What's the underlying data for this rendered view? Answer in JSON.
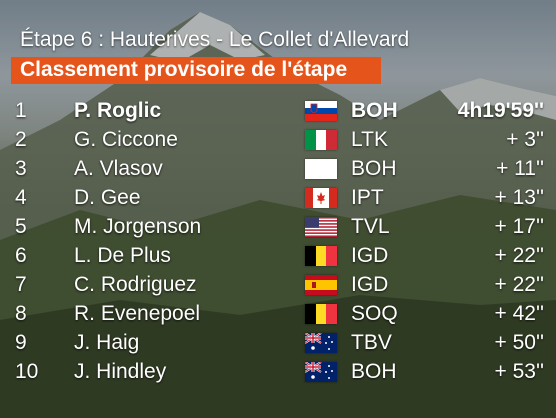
{
  "header": {
    "stage": "Étape 6 : Hauterives - Le Collet d'Allevard",
    "classification": "Classement provisoire de l'étape"
  },
  "rows": [
    {
      "rank": "1",
      "name": "P. Roglic",
      "flag_icon": "slovenia-flag-icon",
      "team": "BOH",
      "time": "4h19'59''"
    },
    {
      "rank": "2",
      "name": "G. Ciccone",
      "flag_icon": "italy-flag-icon",
      "team": "LTK",
      "time": "+ 3''"
    },
    {
      "rank": "3",
      "name": "A. Vlasov",
      "flag_icon": "white-flag-icon",
      "team": "BOH",
      "time": "+ 11''"
    },
    {
      "rank": "4",
      "name": "D. Gee",
      "flag_icon": "canada-flag-icon",
      "team": "IPT",
      "time": "+ 13''"
    },
    {
      "rank": "5",
      "name": "M. Jorgenson",
      "flag_icon": "usa-flag-icon",
      "team": "TVL",
      "time": "+ 17''"
    },
    {
      "rank": "6",
      "name": "L. De Plus",
      "flag_icon": "belgium-flag-icon",
      "team": "IGD",
      "time": "+ 22''"
    },
    {
      "rank": "7",
      "name": "C. Rodriguez",
      "flag_icon": "spain-flag-icon",
      "team": "IGD",
      "time": "+ 22''"
    },
    {
      "rank": "8",
      "name": "R. Evenepoel",
      "flag_icon": "belgium-flag-icon",
      "team": "SOQ",
      "time": "+ 42''"
    },
    {
      "rank": "9",
      "name": "J. Haig",
      "flag_icon": "australia-flag-icon",
      "team": "TBV",
      "time": "+ 50''"
    },
    {
      "rank": "10",
      "name": "J. Hindley",
      "flag_icon": "australia-flag-icon",
      "team": "BOH",
      "time": "+ 53''"
    }
  ],
  "colors": {
    "banner": "#e5541b",
    "text": "#ffffff"
  }
}
